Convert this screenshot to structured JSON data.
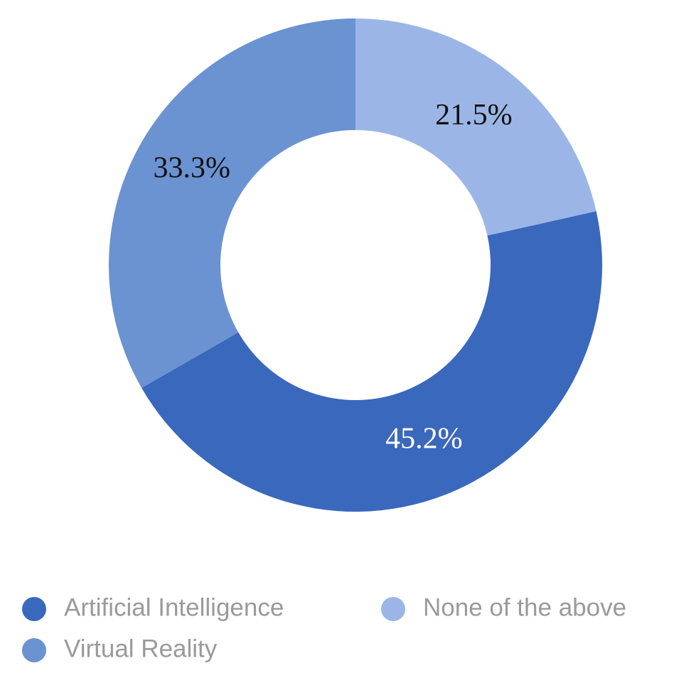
{
  "chart_data": {
    "type": "donut",
    "categories": [
      "None of the above",
      "Artificial Intelligence",
      "Virtual Reality"
    ],
    "values": [
      21.5,
      45.2,
      33.3
    ],
    "value_labels": [
      "21.5%",
      "45.2%",
      "33.3%"
    ],
    "colors": [
      "#9bb6e6",
      "#3a68bd",
      "#6b92d1"
    ],
    "legend": true
  }
}
